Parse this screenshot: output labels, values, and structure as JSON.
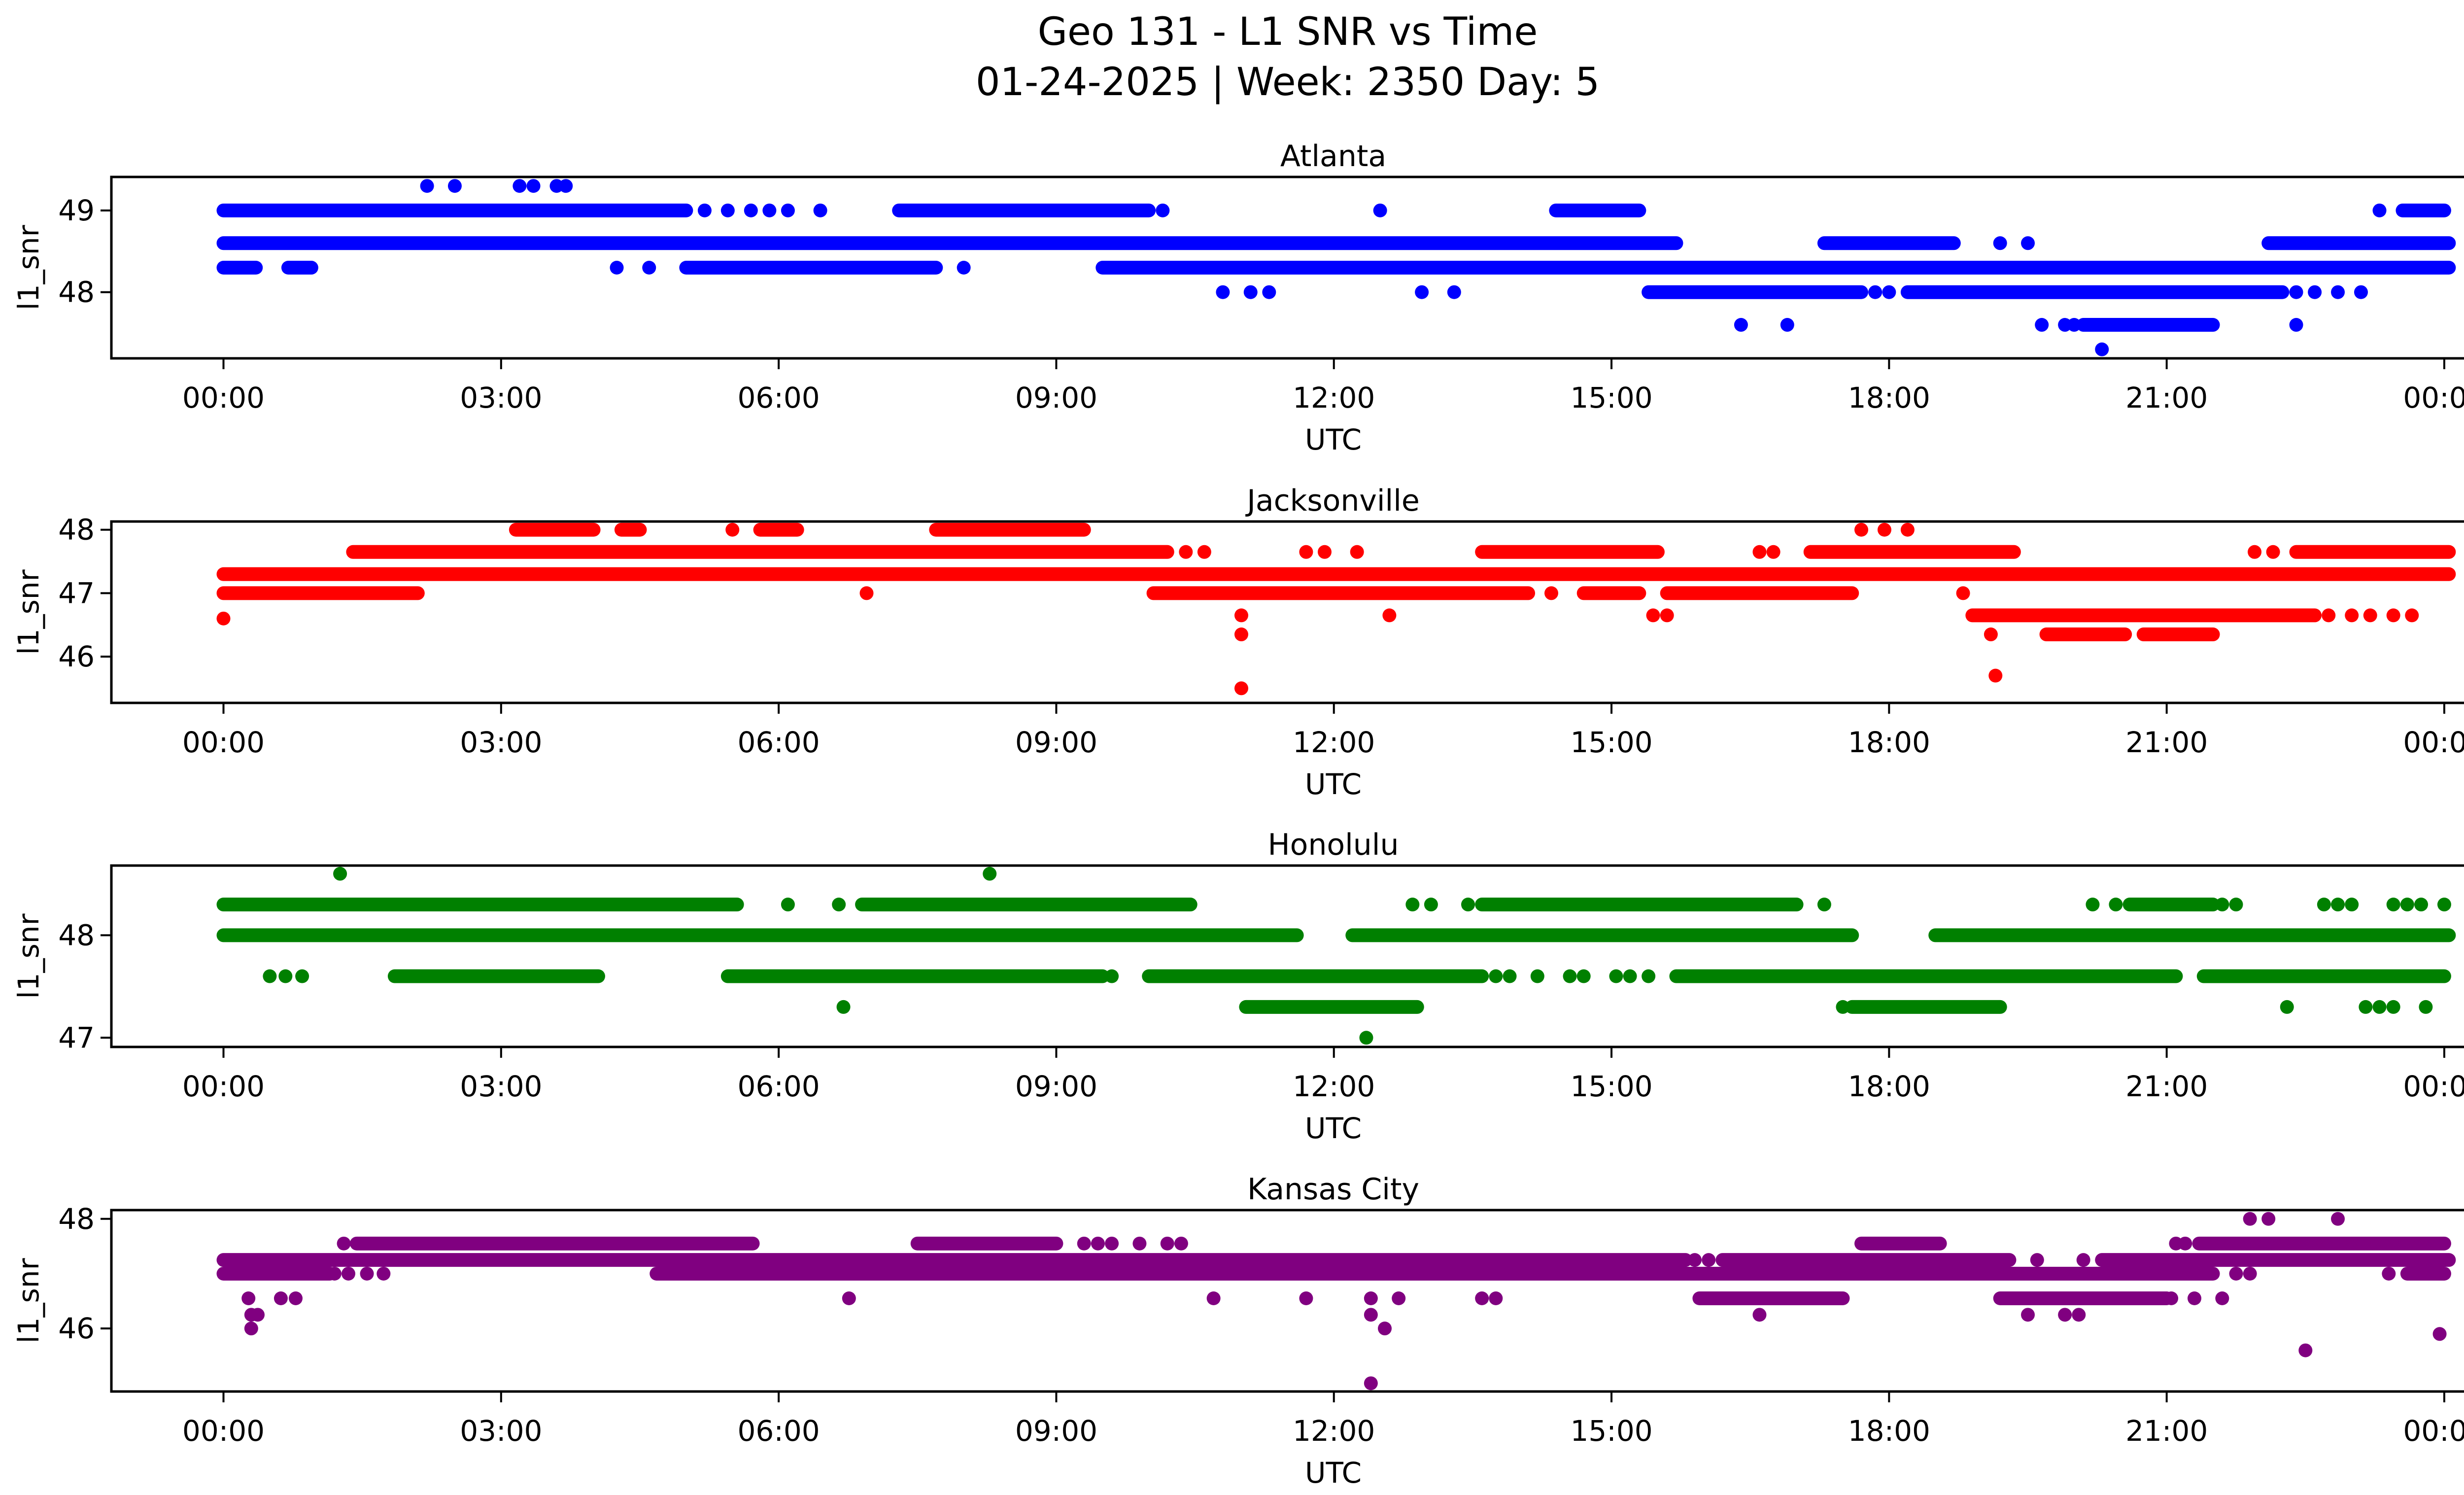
{
  "title": {
    "line1": "Geo 131 - L1 SNR vs Time",
    "line2": "01-24-2025 | Week: 2350 Day: 5"
  },
  "chart_data": {
    "type": "scatter",
    "xlabel": "UTC",
    "ylabel": "l1_snr",
    "x_unit": "hours UTC",
    "xlim": [
      -1.21,
      25.21
    ],
    "grid": false,
    "xticks": {
      "t": [
        0,
        3,
        6,
        9,
        12,
        15,
        18,
        21,
        24
      ],
      "labels": [
        "00:00",
        "03:00",
        "06:00",
        "09:00",
        "12:00",
        "15:00",
        "18:00",
        "21:00",
        "00:00"
      ]
    },
    "panels": [
      {
        "name": "Atlanta",
        "color": "#0000FF",
        "ylim": [
          47.19,
          49.41
        ],
        "yticks": [
          48,
          49
        ],
        "runs": [
          [
            49.0,
            0.0,
            5.0
          ],
          [
            49.0,
            7.3,
            10.0
          ],
          [
            49.0,
            14.4,
            15.3
          ],
          [
            49.0,
            23.55,
            24.0
          ],
          [
            48.6,
            0.0,
            15.7
          ],
          [
            48.6,
            17.3,
            18.7
          ],
          [
            48.6,
            22.1,
            24.05
          ],
          [
            48.3,
            0.0,
            0.35
          ],
          [
            48.3,
            0.7,
            0.95
          ],
          [
            48.3,
            5.0,
            7.7
          ],
          [
            48.3,
            9.5,
            24.05
          ],
          [
            48.0,
            15.4,
            17.7
          ],
          [
            48.0,
            18.2,
            22.25
          ],
          [
            47.6,
            20.1,
            21.5
          ]
        ],
        "dots": [
          [
            2.2,
            49.3
          ],
          [
            2.5,
            49.3
          ],
          [
            3.2,
            49.3
          ],
          [
            3.35,
            49.3
          ],
          [
            3.6,
            49.3
          ],
          [
            3.7,
            49.3
          ],
          [
            5.2,
            49.0
          ],
          [
            5.45,
            49.0
          ],
          [
            5.7,
            49.0
          ],
          [
            5.9,
            49.0
          ],
          [
            6.1,
            49.0
          ],
          [
            6.45,
            49.0
          ],
          [
            10.15,
            49.0
          ],
          [
            12.5,
            49.0
          ],
          [
            23.3,
            49.0
          ],
          [
            19.2,
            48.6
          ],
          [
            19.5,
            48.6
          ],
          [
            4.25,
            48.3
          ],
          [
            4.6,
            48.3
          ],
          [
            8.0,
            48.3
          ],
          [
            10.8,
            48.0
          ],
          [
            11.1,
            48.0
          ],
          [
            11.3,
            48.0
          ],
          [
            12.95,
            48.0
          ],
          [
            13.3,
            48.0
          ],
          [
            17.85,
            48.0
          ],
          [
            18.0,
            48.0
          ],
          [
            22.4,
            48.0
          ],
          [
            22.6,
            48.0
          ],
          [
            22.85,
            48.0
          ],
          [
            23.1,
            48.0
          ],
          [
            16.4,
            47.6
          ],
          [
            16.9,
            47.6
          ],
          [
            19.65,
            47.6
          ],
          [
            19.9,
            47.6
          ],
          [
            20.0,
            47.6
          ],
          [
            22.4,
            47.6
          ],
          [
            20.3,
            47.3
          ]
        ]
      },
      {
        "name": "Jacksonville",
        "color": "#FF0000",
        "ylim": [
          45.27,
          48.13
        ],
        "yticks": [
          46,
          47,
          48
        ],
        "runs": [
          [
            48.0,
            3.16,
            4.0
          ],
          [
            48.0,
            4.3,
            4.5
          ],
          [
            48.0,
            5.8,
            6.2
          ],
          [
            48.0,
            7.7,
            9.3
          ],
          [
            47.65,
            1.4,
            10.2
          ],
          [
            47.65,
            13.6,
            15.5
          ],
          [
            47.65,
            17.15,
            19.35
          ],
          [
            47.65,
            22.4,
            24.05
          ],
          [
            47.3,
            0.0,
            24.05
          ],
          [
            47.0,
            0.0,
            2.1
          ],
          [
            47.0,
            10.05,
            14.1
          ],
          [
            47.0,
            14.7,
            15.3
          ],
          [
            47.0,
            15.6,
            17.6
          ],
          [
            46.65,
            18.9,
            22.6
          ],
          [
            46.35,
            19.7,
            20.55
          ],
          [
            46.35,
            20.75,
            21.5
          ]
        ],
        "dots": [
          [
            5.5,
            48.0
          ],
          [
            17.7,
            48.0
          ],
          [
            17.95,
            48.0
          ],
          [
            18.2,
            48.0
          ],
          [
            10.4,
            47.65
          ],
          [
            10.6,
            47.65
          ],
          [
            11.7,
            47.65
          ],
          [
            11.9,
            47.65
          ],
          [
            12.25,
            47.65
          ],
          [
            16.6,
            47.65
          ],
          [
            16.75,
            47.65
          ],
          [
            21.95,
            47.65
          ],
          [
            22.15,
            47.65
          ],
          [
            6.95,
            47.0
          ],
          [
            14.35,
            47.0
          ],
          [
            18.8,
            47.0
          ],
          [
            0.0,
            46.6
          ],
          [
            11.0,
            46.65
          ],
          [
            12.6,
            46.65
          ],
          [
            15.45,
            46.65
          ],
          [
            15.6,
            46.65
          ],
          [
            22.75,
            46.65
          ],
          [
            23.0,
            46.65
          ],
          [
            23.2,
            46.65
          ],
          [
            23.45,
            46.65
          ],
          [
            23.65,
            46.65
          ],
          [
            11.0,
            46.35
          ],
          [
            19.1,
            46.35
          ],
          [
            11.0,
            45.5
          ],
          [
            19.15,
            45.7
          ]
        ]
      },
      {
        "name": "Honolulu",
        "color": "#008000",
        "ylim": [
          46.91,
          48.68
        ],
        "yticks": [
          47,
          48
        ],
        "runs": [
          [
            48.3,
            0.0,
            5.55
          ],
          [
            48.3,
            6.9,
            10.45
          ],
          [
            48.3,
            13.6,
            17.0
          ],
          [
            48.3,
            20.6,
            21.5
          ],
          [
            48.0,
            0.0,
            11.6
          ],
          [
            48.0,
            12.2,
            17.6
          ],
          [
            48.0,
            18.5,
            24.05
          ],
          [
            47.6,
            1.85,
            4.05
          ],
          [
            47.6,
            5.45,
            9.5
          ],
          [
            47.6,
            10.0,
            13.6
          ],
          [
            47.6,
            15.7,
            21.1
          ],
          [
            47.6,
            21.4,
            24.0
          ],
          [
            47.3,
            11.05,
            12.9
          ],
          [
            47.3,
            17.6,
            19.2
          ]
        ],
        "dots": [
          [
            1.26,
            48.6
          ],
          [
            8.28,
            48.6
          ],
          [
            6.1,
            48.3
          ],
          [
            6.65,
            48.3
          ],
          [
            12.85,
            48.3
          ],
          [
            13.05,
            48.3
          ],
          [
            13.45,
            48.3
          ],
          [
            17.3,
            48.3
          ],
          [
            20.2,
            48.3
          ],
          [
            20.45,
            48.3
          ],
          [
            21.6,
            48.3
          ],
          [
            21.75,
            48.3
          ],
          [
            22.7,
            48.3
          ],
          [
            22.85,
            48.3
          ],
          [
            23.0,
            48.3
          ],
          [
            23.45,
            48.3
          ],
          [
            23.6,
            48.3
          ],
          [
            23.75,
            48.3
          ],
          [
            24.0,
            48.3
          ],
          [
            0.5,
            47.6
          ],
          [
            0.67,
            47.6
          ],
          [
            0.85,
            47.6
          ],
          [
            9.6,
            47.6
          ],
          [
            13.75,
            47.6
          ],
          [
            13.9,
            47.6
          ],
          [
            14.2,
            47.6
          ],
          [
            14.55,
            47.6
          ],
          [
            14.7,
            47.6
          ],
          [
            15.05,
            47.6
          ],
          [
            15.2,
            47.6
          ],
          [
            15.4,
            47.6
          ],
          [
            6.7,
            47.3
          ],
          [
            17.5,
            47.3
          ],
          [
            22.3,
            47.3
          ],
          [
            23.15,
            47.3
          ],
          [
            23.3,
            47.3
          ],
          [
            23.45,
            47.3
          ],
          [
            23.8,
            47.3
          ],
          [
            12.35,
            47.0
          ]
        ]
      },
      {
        "name": "Kansas City",
        "color": "#800080",
        "ylim": [
          44.85,
          48.16
        ],
        "yticks": [
          46,
          48
        ],
        "runs": [
          [
            47.55,
            1.44,
            5.72
          ],
          [
            47.55,
            7.5,
            9.0
          ],
          [
            47.55,
            17.7,
            18.55
          ],
          [
            47.55,
            21.35,
            24.0
          ],
          [
            47.25,
            0.0,
            15.8
          ],
          [
            47.25,
            16.2,
            19.3
          ],
          [
            47.25,
            20.3,
            24.05
          ],
          [
            47.0,
            0.0,
            1.15
          ],
          [
            47.0,
            4.68,
            21.5
          ],
          [
            47.0,
            23.6,
            24.0
          ],
          [
            46.55,
            15.95,
            17.5
          ],
          [
            46.55,
            19.2,
            21.0
          ]
        ],
        "dots": [
          [
            21.9,
            48.0
          ],
          [
            22.1,
            48.0
          ],
          [
            22.85,
            48.0
          ],
          [
            1.3,
            47.55
          ],
          [
            9.3,
            47.55
          ],
          [
            9.45,
            47.55
          ],
          [
            9.6,
            47.55
          ],
          [
            9.9,
            47.55
          ],
          [
            10.2,
            47.55
          ],
          [
            10.35,
            47.55
          ],
          [
            21.1,
            47.55
          ],
          [
            21.2,
            47.55
          ],
          [
            15.9,
            47.25
          ],
          [
            16.05,
            47.25
          ],
          [
            19.6,
            47.25
          ],
          [
            20.1,
            47.25
          ],
          [
            1.2,
            47.0
          ],
          [
            1.35,
            47.0
          ],
          [
            1.55,
            47.0
          ],
          [
            1.73,
            47.0
          ],
          [
            21.75,
            47.0
          ],
          [
            21.9,
            47.0
          ],
          [
            23.4,
            47.0
          ],
          [
            0.27,
            46.55
          ],
          [
            0.62,
            46.55
          ],
          [
            0.78,
            46.55
          ],
          [
            6.76,
            46.55
          ],
          [
            10.7,
            46.55
          ],
          [
            11.7,
            46.55
          ],
          [
            12.4,
            46.55
          ],
          [
            12.7,
            46.55
          ],
          [
            13.6,
            46.55
          ],
          [
            13.75,
            46.55
          ],
          [
            21.05,
            46.55
          ],
          [
            21.3,
            46.55
          ],
          [
            21.6,
            46.55
          ],
          [
            0.3,
            46.25
          ],
          [
            0.37,
            46.25
          ],
          [
            12.4,
            46.25
          ],
          [
            16.6,
            46.25
          ],
          [
            19.5,
            46.25
          ],
          [
            19.9,
            46.25
          ],
          [
            20.05,
            46.25
          ],
          [
            0.3,
            46.0
          ],
          [
            12.55,
            46.0
          ],
          [
            23.95,
            45.9
          ],
          [
            22.5,
            45.6
          ],
          [
            12.4,
            45.0
          ]
        ]
      }
    ]
  }
}
